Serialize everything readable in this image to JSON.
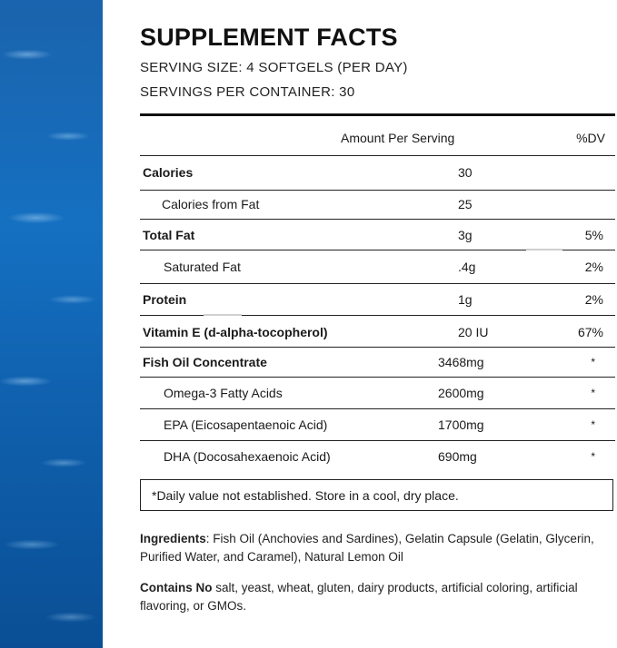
{
  "title": "SUPPLEMENT FACTS",
  "serving_size": "SERVING SIZE: 4 SOFTGELS (PER DAY)",
  "servings_per_container": "SERVINGS PER CONTAINER: 30",
  "table": {
    "header": {
      "amount": "Amount Per Serving",
      "dv": "%DV"
    },
    "rows": [
      {
        "label": "Calories",
        "amount": "30",
        "dv": ""
      },
      {
        "label": "Calories from Fat",
        "amount": "25",
        "dv": ""
      },
      {
        "label": "Total Fat",
        "amount": "3g",
        "dv": "5%"
      },
      {
        "label": "Saturated Fat",
        "amount": ".4g",
        "dv": "2%"
      },
      {
        "label": "Protein",
        "amount": "1g",
        "dv": "2%"
      },
      {
        "label": "Vitamin E (d-alpha-tocopherol)",
        "amount": "20 IU",
        "dv": "67%"
      },
      {
        "label": "Fish Oil Concentrate",
        "amount": "3468mg",
        "dv": "*"
      },
      {
        "label": "Omega-3 Fatty Acids",
        "amount": "2600mg",
        "dv": "*"
      },
      {
        "label": "EPA (Eicosapentaenoic Acid)",
        "amount": "1700mg",
        "dv": "*"
      },
      {
        "label": "DHA (Docosahexaenoic Acid)",
        "amount": "690mg",
        "dv": "*"
      }
    ]
  },
  "note": "*Daily value not established.  Store in a cool, dry place.",
  "ingredients": {
    "label": "Ingredients",
    "text": ": Fish Oil (Anchovies and Sardines), Gelatin Capsule (Gelatin, Glycerin, Purified Water, and Caramel), Natural Lemon Oil"
  },
  "contains_no": {
    "label": "Contains No",
    "text": " salt, yeast, wheat, gluten, dairy products, artificial coloring, artificial flavoring, or GMOs."
  }
}
